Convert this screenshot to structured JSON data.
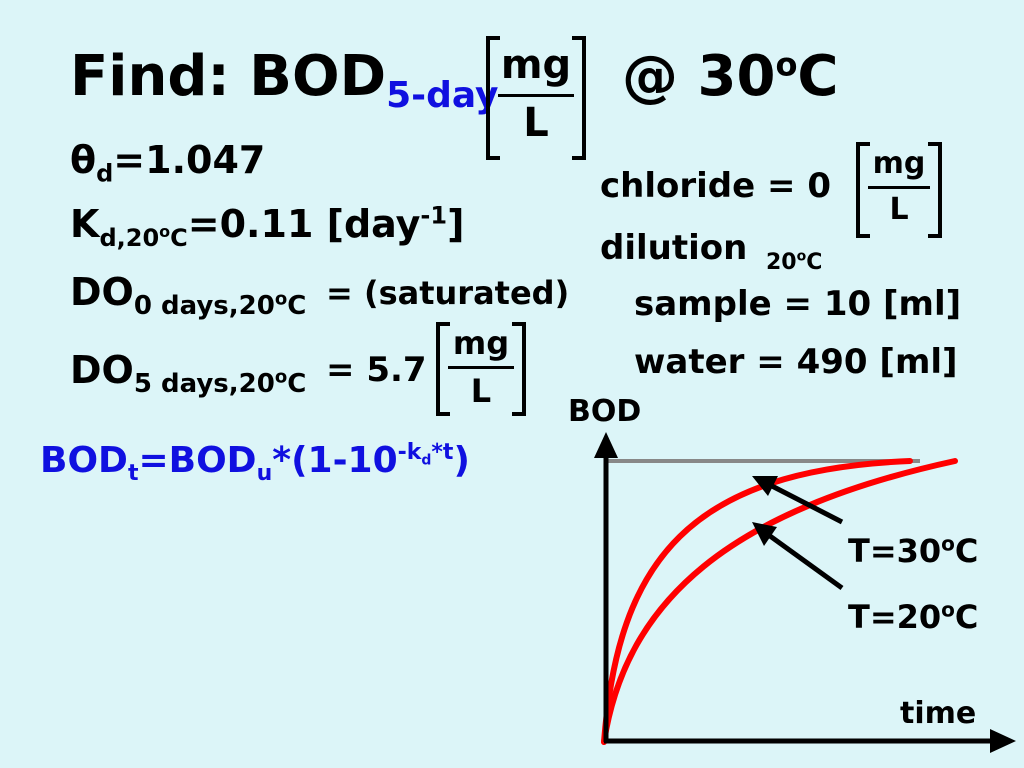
{
  "title": {
    "find": "Find: BOD",
    "find_sub": "5-day",
    "unit_num": "mg",
    "unit_den": "L",
    "at_temp": "@ 30",
    "deg": "o",
    "celsius": "C"
  },
  "theta": {
    "label": "θ",
    "sub": "d",
    "value": "=1.047"
  },
  "kd": {
    "label": "K",
    "sub": "d,20",
    "deg": "o",
    "c": "C",
    "value": "=0.11 [day",
    "exp": "-1",
    "close": "]"
  },
  "do0": {
    "label": "DO",
    "sub": "0 days,20",
    "deg": "o",
    "c": "C",
    "value": "= (saturated)"
  },
  "do5": {
    "label": "DO",
    "sub": "5 days,20",
    "deg": "o",
    "c": "C",
    "value": "= 5.7",
    "unit_num": "mg",
    "unit_den": "L"
  },
  "formula": {
    "lhs": "BOD",
    "lhs_sub": "t",
    "eq": "=",
    "rhs": "BOD",
    "rhs_sub": "u",
    "mid": "*(1-10",
    "exp": "-k",
    "exp_sub": "d",
    "exp_tail": "*t",
    "close": ")"
  },
  "chloride": {
    "label": "chloride = 0",
    "unit_num": "mg",
    "unit_den": "L"
  },
  "dilution": {
    "label": "dilution",
    "temp": "20",
    "deg": "o",
    "c": "C"
  },
  "sample": "sample = 10 [ml]",
  "water": "water = 490 [ml]",
  "graph": {
    "y_label": "BOD",
    "x_label": "time",
    "curve_30": {
      "t": "T=30",
      "deg": "o",
      "c": "C"
    },
    "curve_20": {
      "t": "T=20",
      "deg": "o",
      "c": "C"
    },
    "curve_color": "#ff0000",
    "asymptote_color": "#888888"
  }
}
